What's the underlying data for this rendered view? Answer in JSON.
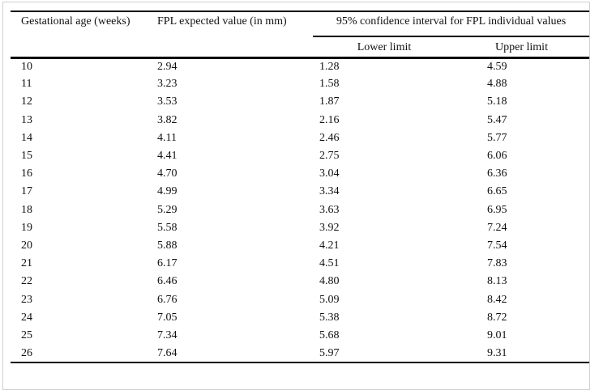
{
  "table": {
    "col1_header": "Gestational age (weeks)",
    "col2_header": "FPL expected value (in mm)",
    "group_header": "95% confidence interval for FPL individual values",
    "sub_headers": [
      "Lower limit",
      "Upper limit"
    ],
    "rows": [
      [
        "10",
        "2.94",
        "1.28",
        "4.59"
      ],
      [
        "11",
        "3.23",
        "1.58",
        "4.88"
      ],
      [
        "12",
        "3.53",
        "1.87",
        "5.18"
      ],
      [
        "13",
        "3.82",
        "2.16",
        "5.47"
      ],
      [
        "14",
        "4.11",
        "2.46",
        "5.77"
      ],
      [
        "15",
        "4.41",
        "2.75",
        "6.06"
      ],
      [
        "16",
        "4.70",
        "3.04",
        "6.36"
      ],
      [
        "17",
        "4.99",
        "3.34",
        "6.65"
      ],
      [
        "18",
        "5.29",
        "3.63",
        "6.95"
      ],
      [
        "19",
        "5.58",
        "3.92",
        "7.24"
      ],
      [
        "20",
        "5.88",
        "4.21",
        "7.54"
      ],
      [
        "21",
        "6.17",
        "4.51",
        "7.83"
      ],
      [
        "22",
        "6.46",
        "4.80",
        "8.13"
      ],
      [
        "23",
        "6.76",
        "5.09",
        "8.42"
      ],
      [
        "24",
        "7.05",
        "5.38",
        "8.72"
      ],
      [
        "25",
        "7.34",
        "5.68",
        "9.01"
      ],
      [
        "26",
        "7.64",
        "5.97",
        "9.31"
      ]
    ],
    "colors": {
      "rule": "#000000",
      "frame_border": "#cfcfcf",
      "text": "#111111",
      "background": "#ffffff"
    }
  }
}
